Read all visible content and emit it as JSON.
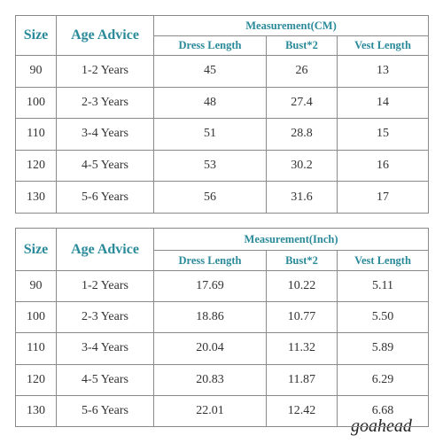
{
  "tables": [
    {
      "headers": {
        "size": "Size",
        "age": "Age Advice",
        "group": "Measurement(CM)",
        "columns": [
          "Dress Length",
          "Bust*2",
          "Vest Length"
        ]
      },
      "rows": [
        [
          "90",
          "1-2 Years",
          "45",
          "26",
          "13"
        ],
        [
          "100",
          "2-3 Years",
          "48",
          "27.4",
          "14"
        ],
        [
          "110",
          "3-4 Years",
          "51",
          "28.8",
          "15"
        ],
        [
          "120",
          "4-5 Years",
          "53",
          "30.2",
          "16"
        ],
        [
          "130",
          "5-6 Years",
          "56",
          "31.6",
          "17"
        ]
      ]
    },
    {
      "headers": {
        "size": "Size",
        "age": "Age Advice",
        "group": "Measurement(Inch)",
        "columns": [
          "Dress Length",
          "Bust*2",
          "Vest Length"
        ]
      },
      "rows": [
        [
          "90",
          "1-2 Years",
          "17.69",
          "10.22",
          "5.11"
        ],
        [
          "100",
          "2-3 Years",
          "18.86",
          "10.77",
          "5.50"
        ],
        [
          "110",
          "3-4 Years",
          "20.04",
          "11.32",
          "5.89"
        ],
        [
          "120",
          "4-5 Years",
          "20.83",
          "11.87",
          "6.29"
        ],
        [
          "130",
          "5-6 Years",
          "22.01",
          "12.42",
          "6.68"
        ]
      ]
    }
  ],
  "watermark": "goahead"
}
